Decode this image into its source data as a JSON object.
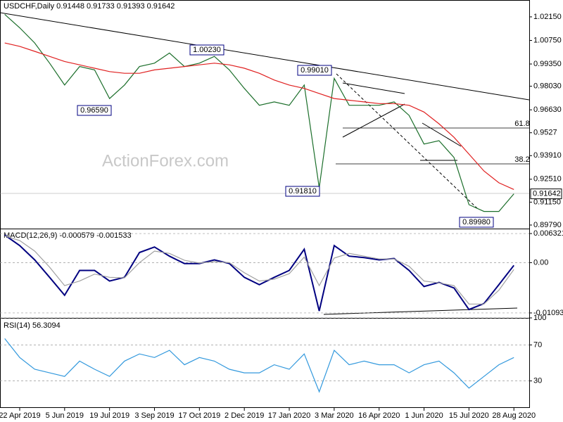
{
  "chart_data": [
    {
      "type": "line",
      "title": "USDCHF,Daily  0.91448 0.91733 0.91393 0.91642",
      "watermark": "ActionForex.com",
      "categories": [
        null,
        "22 Apr 2019",
        null,
        null,
        "5 Jun 2019",
        null,
        null,
        "19 Jul 2019",
        null,
        null,
        "3 Sep 2019",
        null,
        null,
        "17 Oct 2019",
        null,
        null,
        "2 Dec 2019",
        null,
        null,
        "17 Jan 2020",
        null,
        null,
        "3 Mar 2020",
        null,
        null,
        "16 Apr 2020",
        null,
        null,
        "1 Jun 2020",
        null,
        null,
        "15 Jul 2020",
        null,
        null,
        "28 Aug 2020"
      ],
      "series": [
        {
          "color": "#1b6e2a",
          "values": [
            1.023,
            1.015,
            1.006,
            0.994,
            0.981,
            0.992,
            0.99,
            0.973,
            0.981,
            0.992,
            0.994,
            1.0,
            0.992,
            0.994,
            0.998,
            0.99,
            0.979,
            0.969,
            0.971,
            0.969,
            0.981,
            0.92,
            0.985,
            0.969,
            0.969,
            0.969,
            0.971,
            0.963,
            0.946,
            0.948,
            0.938,
            0.91,
            0.906,
            0.906,
            0.91642
          ]
        },
        {
          "color": "#e02020",
          "values": [
            1.006,
            1.004,
            1.001,
            0.998,
            0.995,
            0.993,
            0.991,
            0.989,
            0.988,
            0.988,
            0.99,
            0.991,
            0.992,
            0.993,
            0.994,
            0.993,
            0.991,
            0.988,
            0.984,
            0.981,
            0.979,
            0.976,
            0.973,
            0.972,
            0.971,
            0.97,
            0.97,
            0.969,
            0.965,
            0.958,
            0.95,
            0.94,
            0.93,
            0.923,
            0.919
          ]
        }
      ],
      "annotations": [
        "1.00230",
        "0.96590",
        "0.99010",
        "0.91810",
        "0.89980",
        "61.8",
        "38.2"
      ],
      "ylim": [
        0.8958,
        1.0315
      ],
      "yticks": [
        {
          "value": 1.0215,
          "label": "1.02150"
        },
        {
          "value": 1.0075,
          "label": "1.00750"
        },
        {
          "value": 0.9935,
          "label": "0.99350"
        },
        {
          "value": 0.9803,
          "label": "0.98030"
        },
        {
          "value": 0.9663,
          "label": "0.96630"
        },
        0.9527,
        {
          "value": 0.9391,
          "label": "0.93910"
        },
        {
          "value": 0.9251,
          "label": "0.92510"
        },
        {
          "value": 0.9115,
          "label": "0.91150"
        },
        {
          "value": 0.8979,
          "label": "0.89790"
        }
      ],
      "grid": false
    },
    {
      "type": "line",
      "title": "MACD(12,26,9) -0.000579 -0.001533",
      "series": [
        {
          "color": "#000080",
          "values": [
            0.006,
            0.0037,
            0.0006,
            -0.0032,
            -0.0071,
            -0.0017,
            -0.0017,
            -0.004,
            -0.0032,
            0.0022,
            0.0034,
            0.0014,
            -0.0002,
            -0.0002,
            0.0006,
            -0.0002,
            -0.0032,
            -0.0048,
            -0.0032,
            -0.0017,
            0.0029,
            -0.0105,
            0.0037,
            0.0014,
            0.0011,
            0.0006,
            0.0009,
            -0.0017,
            -0.0052,
            -0.0043,
            -0.0055,
            -0.0102,
            -0.0089,
            -0.0048,
            -0.0006
          ]
        },
        {
          "color": "#a0a0a0",
          "values": [
            0.0058,
            0.0048,
            0.0025,
            -0.001,
            -0.005,
            -0.004,
            -0.0025,
            -0.0032,
            -0.0033,
            0.0,
            0.0025,
            0.002,
            0.0005,
            -0.0001,
            0.0002,
            0.0,
            -0.0022,
            -0.004,
            -0.0036,
            -0.0024,
            0.0012,
            -0.005,
            0.001,
            0.002,
            0.0014,
            0.0008,
            0.0008,
            -0.0008,
            -0.004,
            -0.0044,
            -0.005,
            -0.009,
            -0.009,
            -0.006,
            -0.0015
          ]
        }
      ],
      "ylim": [
        -0.01202,
        0.0074
      ],
      "yticks": [
        0.006321,
        {
          "value": 0,
          "label": "0.00"
        },
        -0.010939
      ],
      "grid": true
    },
    {
      "type": "line",
      "title": "RSI(14) 56.3094",
      "series": [
        {
          "color": "#3399dd",
          "values": [
            77,
            56,
            43,
            39,
            35,
            52,
            43,
            35,
            52,
            60,
            56,
            64,
            48,
            56,
            52,
            43,
            39,
            39,
            48,
            43,
            60,
            18,
            64,
            48,
            52,
            48,
            48,
            39,
            48,
            52,
            39,
            22,
            35,
            48,
            56
          ]
        }
      ],
      "ylim": [
        0,
        100
      ],
      "yticks": [
        100,
        70,
        30
      ],
      "grid": true
    }
  ]
}
